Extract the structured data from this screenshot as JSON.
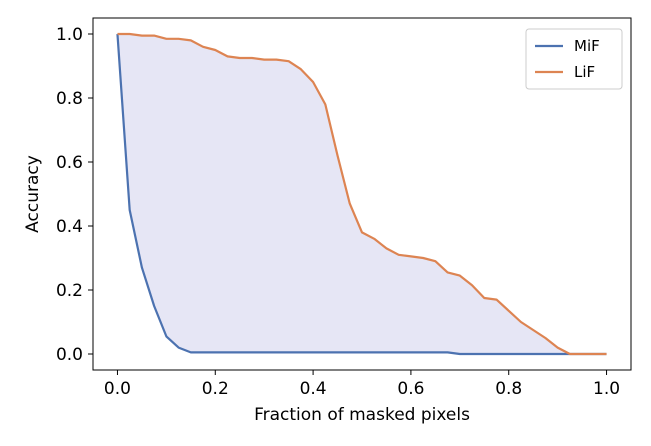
{
  "chart_data": {
    "type": "line",
    "title": "",
    "xlabel": "Fraction of masked pixels",
    "ylabel": "Accuracy",
    "xlim": [
      -0.05,
      1.05
    ],
    "ylim": [
      -0.05,
      1.05
    ],
    "xticks": [
      0.0,
      0.2,
      0.4,
      0.6,
      0.8,
      1.0
    ],
    "xtick_labels": [
      "0.0",
      "0.2",
      "0.4",
      "0.6",
      "0.8",
      "1.0"
    ],
    "yticks": [
      0.0,
      0.2,
      0.4,
      0.6,
      0.8,
      1.0
    ],
    "ytick_labels": [
      "0.0",
      "0.2",
      "0.4",
      "0.6",
      "0.8",
      "1.0"
    ],
    "grid": false,
    "legend_position": "top-right",
    "fill_between": {
      "series": [
        "MiF",
        "LiF"
      ],
      "color": "#e6e6f5"
    },
    "series": [
      {
        "name": "MiF",
        "color": "#4c72b0",
        "x": [
          0.0,
          0.025,
          0.05,
          0.075,
          0.1,
          0.125,
          0.15,
          0.2,
          0.3,
          0.4,
          0.5,
          0.6,
          0.675,
          0.7,
          0.8,
          0.9,
          1.0
        ],
        "y": [
          1.0,
          0.45,
          0.27,
          0.15,
          0.055,
          0.02,
          0.005,
          0.005,
          0.005,
          0.005,
          0.005,
          0.005,
          0.005,
          0.0,
          0.0,
          0.0,
          0.0
        ]
      },
      {
        "name": "LiF",
        "color": "#dd8452",
        "x": [
          0.0,
          0.025,
          0.05,
          0.075,
          0.1,
          0.125,
          0.15,
          0.175,
          0.2,
          0.225,
          0.25,
          0.275,
          0.3,
          0.325,
          0.35,
          0.375,
          0.4,
          0.425,
          0.45,
          0.475,
          0.5,
          0.525,
          0.55,
          0.575,
          0.6,
          0.625,
          0.65,
          0.675,
          0.7,
          0.725,
          0.75,
          0.775,
          0.8,
          0.825,
          0.85,
          0.875,
          0.9,
          0.925,
          0.95,
          0.975,
          1.0
        ],
        "y": [
          1.0,
          1.0,
          0.995,
          0.995,
          0.985,
          0.985,
          0.98,
          0.96,
          0.95,
          0.93,
          0.925,
          0.925,
          0.92,
          0.92,
          0.915,
          0.89,
          0.85,
          0.78,
          0.62,
          0.47,
          0.38,
          0.36,
          0.33,
          0.31,
          0.305,
          0.3,
          0.29,
          0.255,
          0.245,
          0.215,
          0.175,
          0.17,
          0.135,
          0.1,
          0.075,
          0.05,
          0.02,
          0.0,
          0.0,
          0.0,
          0.0
        ]
      }
    ]
  }
}
